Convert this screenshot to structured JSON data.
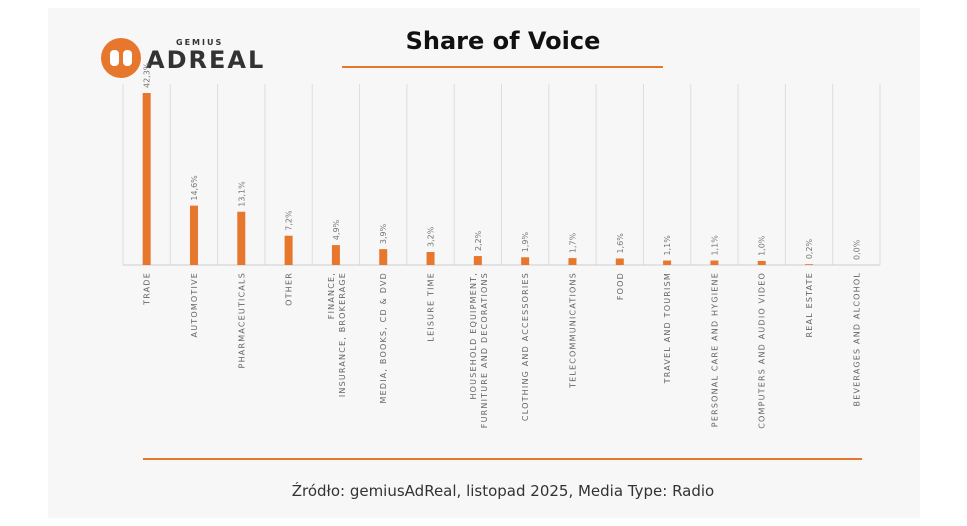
{
  "logo": {
    "brand_top": "GEMIUS",
    "brand": "ADREAL"
  },
  "chart_data": {
    "type": "bar",
    "title": "Share of Voice",
    "categories": [
      "TRADE",
      "AUTOMOTIVE",
      "PHARMACEUTICALS",
      "OTHER",
      "FINANCE, INSURANCE, BROKERAGE",
      "MEDIA, BOOKS, CD & DVD",
      "LEISURE TIME",
      "HOUSEHOLD EQUIPMENT, FURNITURE AND DECORATIONS",
      "CLOTHING AND ACCESSORIES",
      "TELECOMMUNICATIONS",
      "FOOD",
      "TRAVEL AND TOURISM",
      "PERSONAL CARE AND HYGIENE",
      "COMPUTERS AND AUDIO VIDEO",
      "REAL ESTATE",
      "BEVERAGES AND ALCOHOL"
    ],
    "values": [
      42.3,
      14.6,
      13.1,
      7.2,
      4.9,
      3.9,
      3.2,
      2.2,
      1.9,
      1.7,
      1.6,
      1.1,
      1.1,
      1.0,
      0.2,
      0.0
    ],
    "value_labels": [
      "42,3%",
      "14,6%",
      "13,1%",
      "7,2%",
      "4,9%",
      "3,9%",
      "3,2%",
      "2,2%",
      "1,9%",
      "1,7%",
      "1,6%",
      "1,1%",
      "1,1%",
      "1,0%",
      "0,2%",
      "0,0%"
    ],
    "color": "#e8772e",
    "grid": true,
    "source": "Źródło: gemiusAdReal, listopad 2025, Media Type: Radio"
  }
}
